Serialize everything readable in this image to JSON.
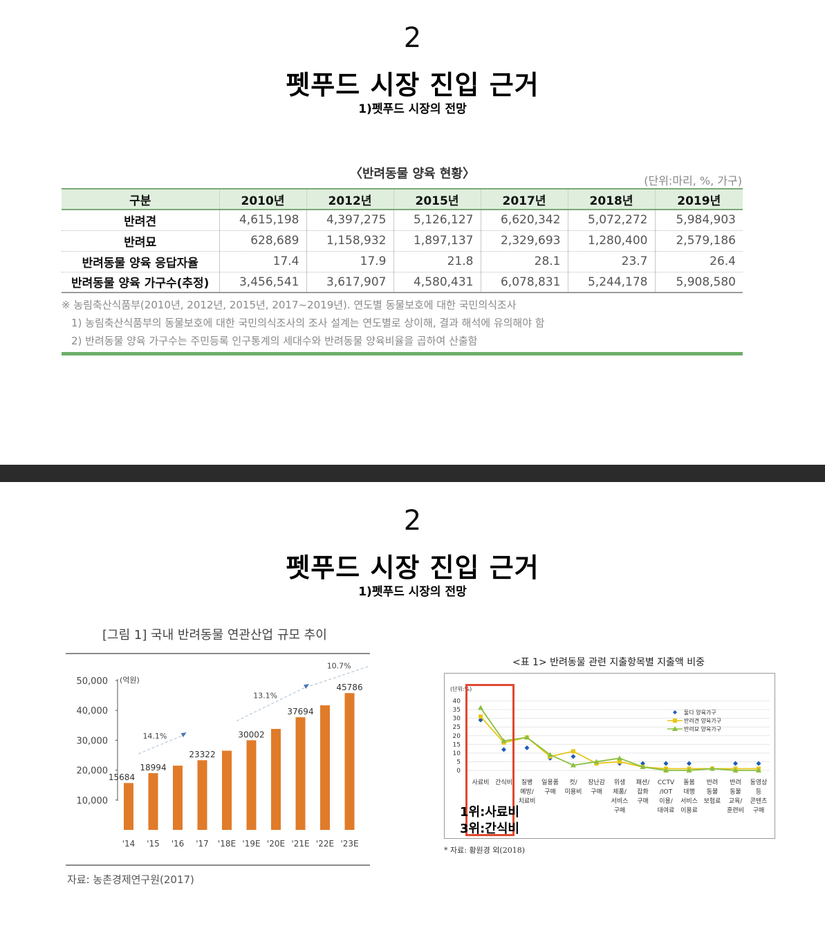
{
  "slide1": {
    "number": "2",
    "title": "펫푸드 시장 진입 근거",
    "subtitle": "1)펫푸드 시장의 전망",
    "table": {
      "caption": "〈반려동물 양육 현황〉",
      "unit": "(단위:마리, %, 가구)",
      "headers": [
        "구분",
        "2010년",
        "2012년",
        "2015년",
        "2017년",
        "2018년",
        "2019년"
      ],
      "rows": [
        {
          "label": "반려견",
          "values": [
            "4,615,198",
            "4,397,275",
            "5,126,127",
            "6,620,342",
            "5,072,272",
            "5,984,903"
          ]
        },
        {
          "label": "반려묘",
          "values": [
            "628,689",
            "1,158,932",
            "1,897,137",
            "2,329,693",
            "1,280,400",
            "2,579,186"
          ]
        },
        {
          "label": "반려동물 양육 응답자율",
          "values": [
            "17.4",
            "17.9",
            "21.8",
            "28.1",
            "23.7",
            "26.4"
          ]
        },
        {
          "label": "반려동물 양육 가구수(추정)",
          "values": [
            "3,456,541",
            "3,617,907",
            "4,580,431",
            "6,078,831",
            "5,244,178",
            "5,908,580"
          ]
        }
      ],
      "notes": [
        "※ 농림축산식품부(2010년, 2012년, 2015년, 2017~2019년). 연도별 동물보호에 대한 국민의식조사",
        "1) 농림축산식품부의 동물보호에 대한 국민의식조사의 조사 설계는 연도별로 상이해, 결과 해석에 유의해야 함",
        "2) 반려동물 양육 가구수는 주민등록 인구통계의 세대수와 반려동물 양육비율을 곱하여 산출함"
      ]
    }
  },
  "slide2": {
    "number": "2",
    "title": "펫푸드 시장 진입 근거",
    "subtitle": "1)펫푸드 시장의 전망",
    "annotation_1": "1위:사료비",
    "annotation_2": "3위:간식비"
  },
  "chart_data": [
    {
      "type": "bar",
      "title": "[그림 1] 국내 반려동물 연관산업 규모 추이",
      "ylabel": "(억원)",
      "source": "자료: 농촌경제연구원(2017)",
      "categories": [
        "'14",
        "'15",
        "'16",
        "'17",
        "'18E",
        "'19E",
        "'20E",
        "'21E",
        "'22E",
        "'23E"
      ],
      "values": [
        15684,
        18994,
        21500,
        23322,
        26500,
        30002,
        33800,
        37694,
        41700,
        45786
      ],
      "data_labels": [
        "15684",
        "18994",
        "",
        "23322",
        "",
        "30002",
        "",
        "37694",
        "",
        "45786"
      ],
      "yticks": [
        "50,000",
        "40,000",
        "30,000",
        "20,000",
        "10,000"
      ],
      "ylim": [
        0,
        50000
      ],
      "growth_labels": [
        "14.1%",
        "13.1%",
        "10.7%"
      ],
      "bar_color": "#e07b2a"
    },
    {
      "type": "line",
      "title": "<표 1> 반려동물 관련 지출항목별 지출액 비중",
      "ylabel": "(단위:%)",
      "source": "* 자료: 황원경 외(2018)",
      "categories": [
        "사료비",
        "간식비",
        "질병 예방/ 치료비",
        "일용품 구매",
        "컷/ 미용비",
        "장난감 구매",
        "위생 제품/ 서비스 구매",
        "패션/ 잡화 구매",
        "CCTV /IOT 이용/ 대여료",
        "돌봄 대행 서비스 이용료",
        "반려 동물 보험료",
        "반려 동물 교육/ 훈련비",
        "동영상 등 콘텐츠 구매"
      ],
      "category_lines": [
        [
          "사료비"
        ],
        [
          "간식비"
        ],
        [
          "질병",
          "예방/",
          "치료비"
        ],
        [
          "일용품",
          "구매"
        ],
        [
          "컷/",
          "미용비"
        ],
        [
          "장난감",
          "구매"
        ],
        [
          "위생",
          "제품/",
          "서비스",
          "구매"
        ],
        [
          "패션/",
          "잡화",
          "구매"
        ],
        [
          "CCTV",
          "/IOT",
          "이용/",
          "대여료"
        ],
        [
          "돌봄",
          "대행",
          "서비스",
          "이용료"
        ],
        [
          "반려",
          "동물",
          "보험료"
        ],
        [
          "반려",
          "동물",
          "교육/",
          "훈련비"
        ],
        [
          "동영상",
          "등",
          "콘텐츠",
          "구매"
        ]
      ],
      "yticks": [
        "40",
        "35",
        "30",
        "25",
        "20",
        "15",
        "10",
        "5",
        "0"
      ],
      "ylim": [
        0,
        40
      ],
      "series": [
        {
          "name": "둘다 양육가구",
          "color": "#1f5bb5",
          "values": [
            29,
            12,
            13,
            7,
            8,
            4,
            4,
            4,
            4,
            4,
            1,
            4,
            4
          ]
        },
        {
          "name": "반려견 양육가구",
          "color": "#e8c619",
          "values": [
            31,
            16,
            19,
            8,
            11,
            4,
            5,
            2,
            1,
            1,
            1,
            1,
            1
          ]
        },
        {
          "name": "반려묘 양육가구",
          "color": "#8cbf3f",
          "values": [
            36,
            17,
            19,
            9,
            3,
            5,
            7,
            2,
            0,
            0,
            1,
            0,
            0
          ]
        }
      ]
    }
  ]
}
